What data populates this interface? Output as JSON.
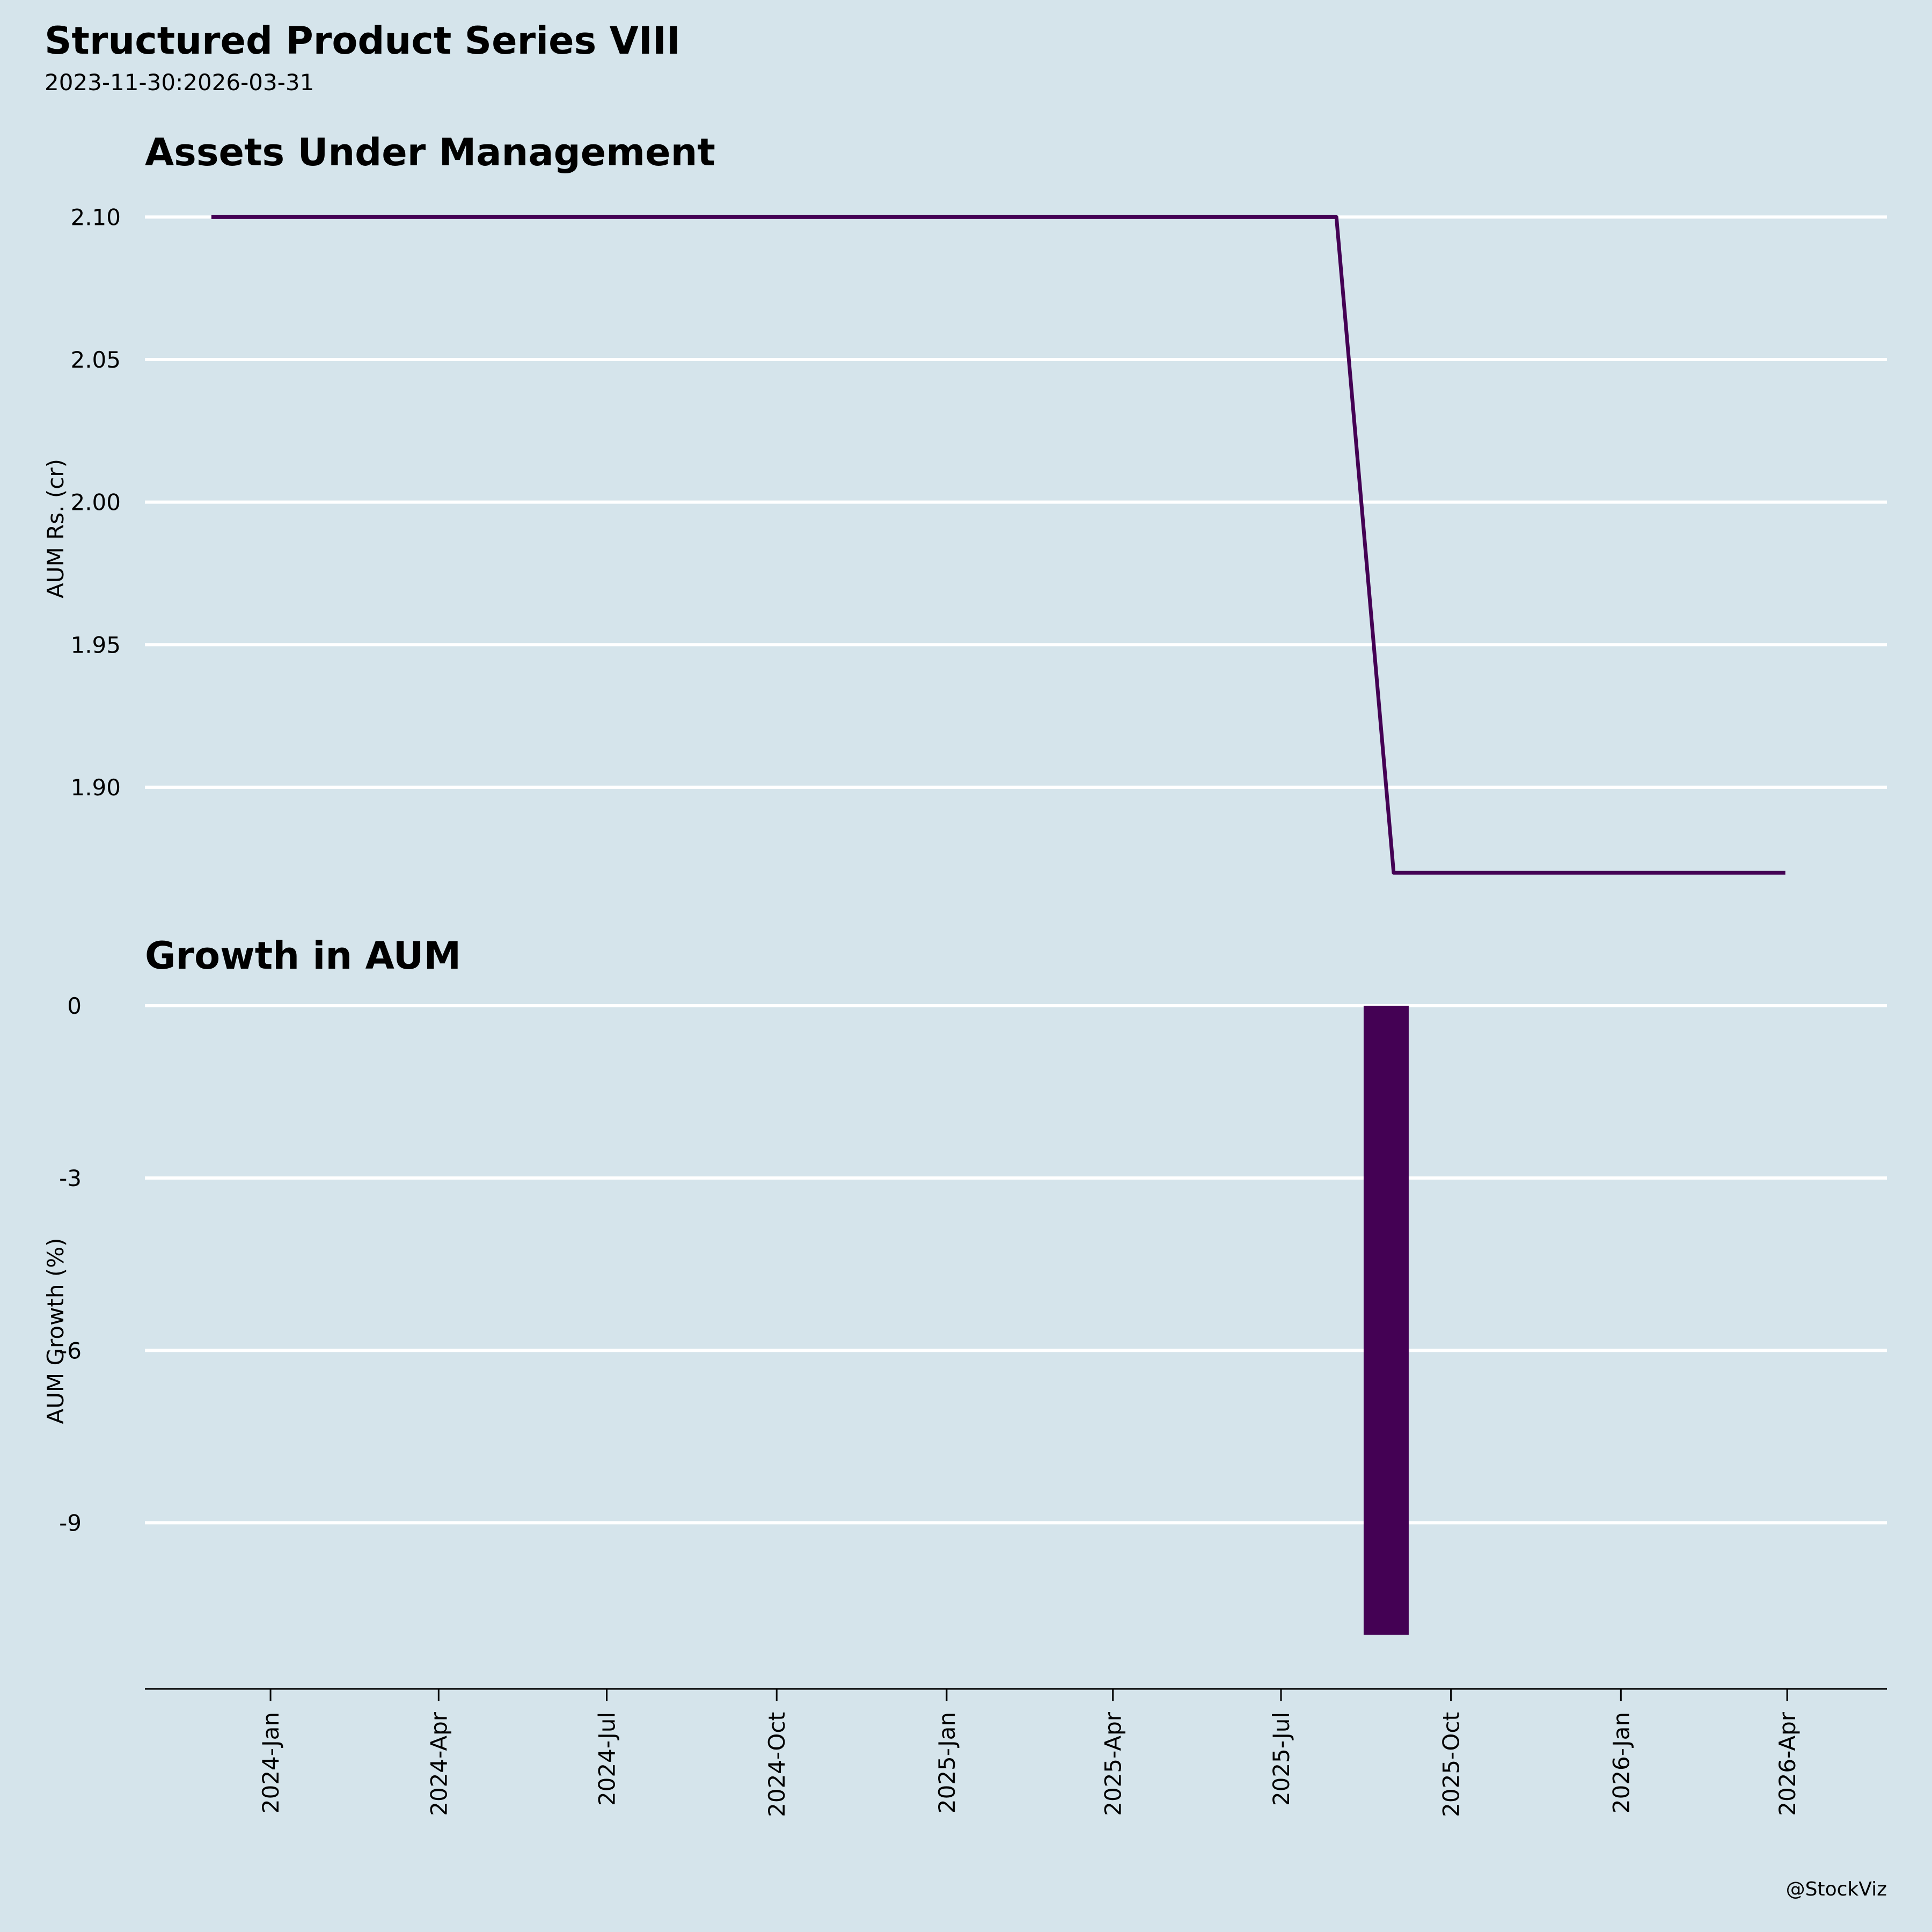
{
  "title": "Structured Product Series VIII",
  "subtitle": "2023-11-30:2026-03-31",
  "credit": "@StockViz",
  "colors": {
    "background": "#d5e4eb",
    "series": "#440154",
    "grid": "#ffffff",
    "axis": "#000000"
  },
  "chart_data": [
    {
      "type": "line",
      "title": "Assets Under Management",
      "ylabel": "AUM Rs. (cr)",
      "xlabel": "",
      "x": [
        "2023-11-30",
        "2023-12-31",
        "2024-01-31",
        "2024-02-29",
        "2024-03-31",
        "2024-04-30",
        "2024-05-31",
        "2024-06-30",
        "2024-07-31",
        "2024-08-31",
        "2024-09-30",
        "2024-10-31",
        "2024-11-30",
        "2024-12-31",
        "2025-01-31",
        "2025-02-28",
        "2025-03-31",
        "2025-04-30",
        "2025-05-31",
        "2025-06-30",
        "2025-07-31",
        "2025-08-31",
        "2025-09-30",
        "2025-10-31",
        "2025-11-30",
        "2025-12-31",
        "2026-01-31",
        "2026-02-28",
        "2026-03-31"
      ],
      "values": [
        2.1,
        2.1,
        2.1,
        2.1,
        2.1,
        2.1,
        2.1,
        2.1,
        2.1,
        2.1,
        2.1,
        2.1,
        2.1,
        2.1,
        2.1,
        2.1,
        2.1,
        2.1,
        2.1,
        2.1,
        2.1,
        1.87,
        1.87,
        1.87,
        1.87,
        1.87,
        1.87,
        1.87,
        1.87
      ],
      "yticks": [
        1.9,
        1.95,
        2.0,
        2.05,
        2.1
      ],
      "ytick_labels": [
        "1.90",
        "1.95",
        "2.00",
        "2.05",
        "2.10"
      ],
      "ylim": [
        1.858,
        2.114
      ],
      "grid": true
    },
    {
      "type": "bar",
      "title": "Growth in AUM",
      "ylabel": "AUM Growth (%)",
      "xlabel": "",
      "x": [
        "2025-08-31"
      ],
      "values": [
        -10.95
      ],
      "yticks": [
        0,
        -3,
        -6,
        -9
      ],
      "ytick_labels": [
        "0",
        "-3",
        "-6",
        "-9"
      ],
      "ylim": [
        -11.5,
        0
      ],
      "grid": true
    }
  ],
  "x_axis": {
    "range": [
      "2023-10-25",
      "2026-05-25"
    ],
    "ticks": [
      "2024-01-01",
      "2024-04-01",
      "2024-07-01",
      "2024-10-01",
      "2025-01-01",
      "2025-04-01",
      "2025-07-01",
      "2025-10-01",
      "2026-01-01",
      "2026-04-01"
    ],
    "tick_labels": [
      "2024-Jan",
      "2024-Apr",
      "2024-Jul",
      "2024-Oct",
      "2025-Jan",
      "2025-Apr",
      "2025-Jul",
      "2025-Oct",
      "2026-Jan",
      "2026-Apr"
    ]
  }
}
